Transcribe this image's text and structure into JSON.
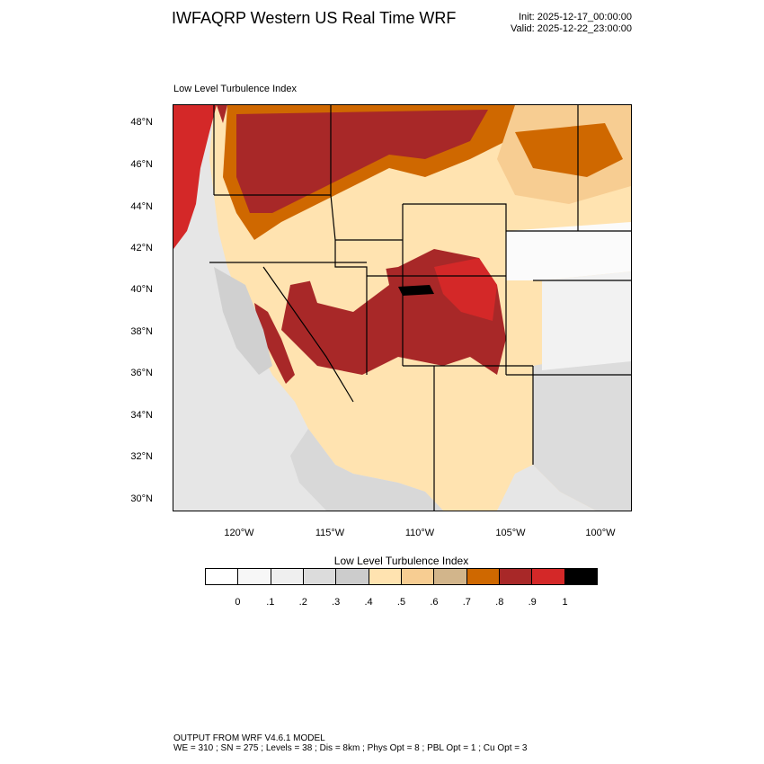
{
  "header": {
    "title": "IWFAQRP Western US Real Time WRF",
    "init": "Init: 2025-12-17_00:00:00",
    "valid": "Valid: 2025-12-22_23:00:00"
  },
  "plot": {
    "title": "Low Level Turbulence Index",
    "lat_labels": [
      "48°N",
      "46°N",
      "44°N",
      "42°N",
      "40°N",
      "38°N",
      "36°N",
      "34°N",
      "32°N",
      "30°N"
    ],
    "lon_labels": [
      "120°W",
      "115°W",
      "110°W",
      "105°W",
      "100°W"
    ]
  },
  "colorbar": {
    "title": "Low Level Turbulence Index",
    "colors": [
      "#ffffff",
      "#f7f7f7",
      "#efefef",
      "#dcdcdc",
      "#cccccc",
      "#ffe3b0",
      "#f7cd92",
      "#d2b58b",
      "#cf6800",
      "#a82828",
      "#d42828",
      "#000000"
    ],
    "labels": [
      "0",
      ".1",
      ".2",
      ".3",
      ".4",
      ".5",
      ".6",
      ".7",
      ".8",
      ".9",
      "1"
    ]
  },
  "footer": {
    "line1": "OUTPUT FROM WRF V4.6.1 MODEL",
    "line2": "WE = 310 ; SN = 275 ; Levels = 38 ; Dis = 8km ; Phys Opt = 8 ; PBL Opt = 1 ; Cu Opt = 3"
  }
}
